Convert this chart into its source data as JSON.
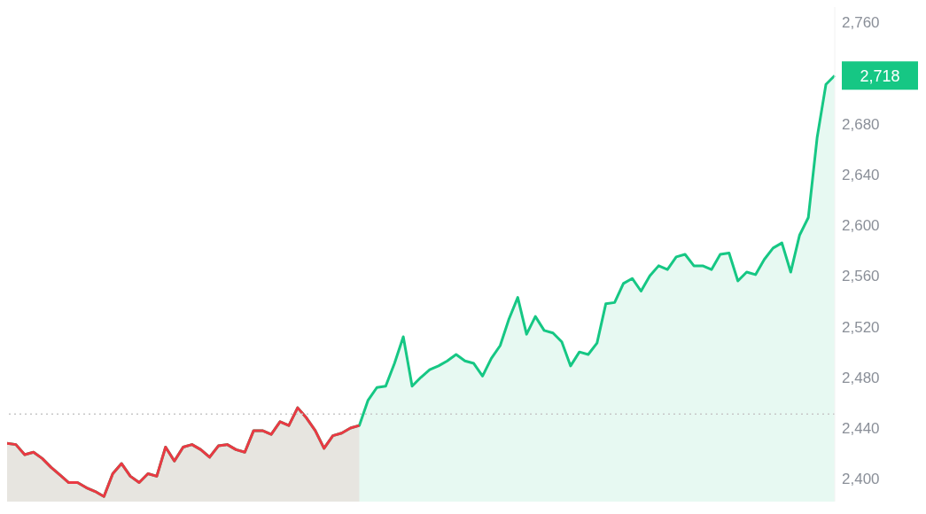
{
  "chart_data": {
    "type": "area",
    "categories": [
      null,
      null,
      null,
      null,
      null,
      null,
      null,
      null,
      null,
      null,
      null,
      null,
      null,
      null,
      null,
      null,
      null,
      null,
      null,
      null,
      null,
      null,
      null,
      null,
      null,
      null,
      null,
      null,
      null,
      null,
      null,
      null,
      null,
      null,
      null,
      null,
      null,
      null,
      null,
      null,
      null,
      null,
      null,
      null,
      null,
      null,
      null,
      null,
      null,
      null,
      null,
      null,
      null,
      null,
      null,
      null,
      null,
      null,
      null,
      null,
      null,
      null,
      null,
      null,
      null,
      null,
      null,
      null,
      null,
      null,
      null,
      null,
      null,
      null,
      null,
      null,
      null,
      null,
      null,
      null,
      null,
      null,
      null,
      null,
      null,
      null,
      null,
      null,
      null,
      null,
      null,
      null,
      null,
      null,
      null
    ],
    "series": [
      {
        "color": "#16c784",
        "values": [
          2428,
          2427,
          2419,
          2421,
          2416,
          2409,
          2403,
          2397,
          2397,
          2393,
          2390,
          2386,
          2404,
          2412,
          2402,
          2397,
          2404,
          2402,
          2425,
          2414,
          2425,
          2427,
          2423,
          2417,
          2426,
          2427,
          2423,
          2421,
          2438,
          2438,
          2435,
          2445,
          2442,
          2456,
          2448,
          2438,
          2424,
          2434,
          2436,
          2440,
          2442,
          2462,
          2472,
          2473,
          2491,
          2512,
          2473,
          2480,
          2486,
          2489,
          2493,
          2498,
          2493,
          2491,
          2481,
          2495,
          2505,
          2526,
          2543,
          2514,
          2528,
          2517,
          2515,
          2508,
          2489,
          2500,
          2498,
          2507,
          2538,
          2539,
          2554,
          2558,
          2548,
          2560,
          2568,
          2565,
          2575,
          2577,
          2568,
          2568,
          2565,
          2577,
          2578,
          2556,
          2563,
          2561,
          2573,
          2582,
          2586,
          2563,
          2592,
          2606,
          2669,
          2711,
          2718
        ],
        "value_labels": [
          null,
          null,
          null,
          null,
          null,
          null,
          null,
          null,
          null,
          null,
          null,
          null,
          null,
          null,
          null,
          null,
          null,
          null,
          null,
          null,
          null,
          null,
          null,
          null,
          null,
          null,
          null,
          null,
          null,
          null,
          null,
          null,
          null,
          null,
          null,
          null,
          null,
          null,
          null,
          null,
          null,
          null,
          null,
          null,
          null,
          null,
          null,
          null,
          null,
          null,
          null,
          null,
          null,
          null,
          null,
          null,
          null,
          null,
          null,
          null,
          null,
          null,
          null,
          null,
          null,
          null,
          null,
          null,
          null,
          null,
          null,
          null,
          null,
          null,
          null,
          null,
          null,
          null,
          null,
          null,
          null,
          null,
          null,
          null,
          null,
          null,
          null,
          null,
          null,
          null,
          null,
          null,
          null,
          null,
          "2,718"
        ]
      },
      {
        "color": "#ea3943",
        "values": [
          2428,
          2427,
          2419,
          2421,
          2416,
          2409,
          2403,
          2397,
          2397,
          2393,
          2390,
          2386,
          2404,
          2412,
          2402,
          2397,
          2404,
          2402,
          2425,
          2414,
          2425,
          2427,
          2423,
          2417,
          2426,
          2427,
          2423,
          2421,
          2438,
          2438,
          2435,
          2445,
          2442,
          2456,
          2448,
          2438,
          2424,
          2434,
          2436,
          2440,
          2442,
          null,
          null,
          null,
          null,
          null,
          null,
          null,
          null,
          null,
          null,
          null,
          null,
          null,
          null,
          null,
          null,
          null,
          null,
          null,
          null,
          null,
          null,
          null,
          null,
          null,
          null,
          null,
          null,
          null,
          null,
          null,
          null,
          null,
          null,
          null,
          null,
          null,
          null,
          null,
          null,
          null,
          null,
          null,
          null,
          null,
          null,
          null,
          null,
          null,
          null,
          null,
          null,
          null,
          null
        ]
      }
    ],
    "ylim": [
      2382,
      2772
    ],
    "yticks": [
      {
        "value": 2400,
        "label": "2,400"
      },
      {
        "value": 2440,
        "label": "2,440"
      },
      {
        "value": 2480,
        "label": "2,480"
      },
      {
        "value": 2520,
        "label": "2,520"
      },
      {
        "value": 2560,
        "label": "2,560"
      },
      {
        "value": 2600,
        "label": "2,600"
      },
      {
        "value": 2640,
        "label": "2,640"
      },
      {
        "value": 2680,
        "label": "2,680"
      },
      {
        "value": 2760,
        "label": "2,760"
      }
    ],
    "ref_lines": [
      {
        "axis": "y",
        "value": 2451,
        "color": "#c8c8c8",
        "line_style": "dotted"
      }
    ],
    "grid": false,
    "legend": false,
    "marker": "none",
    "line_style": "solid",
    "tick_labels": "y"
  }
}
